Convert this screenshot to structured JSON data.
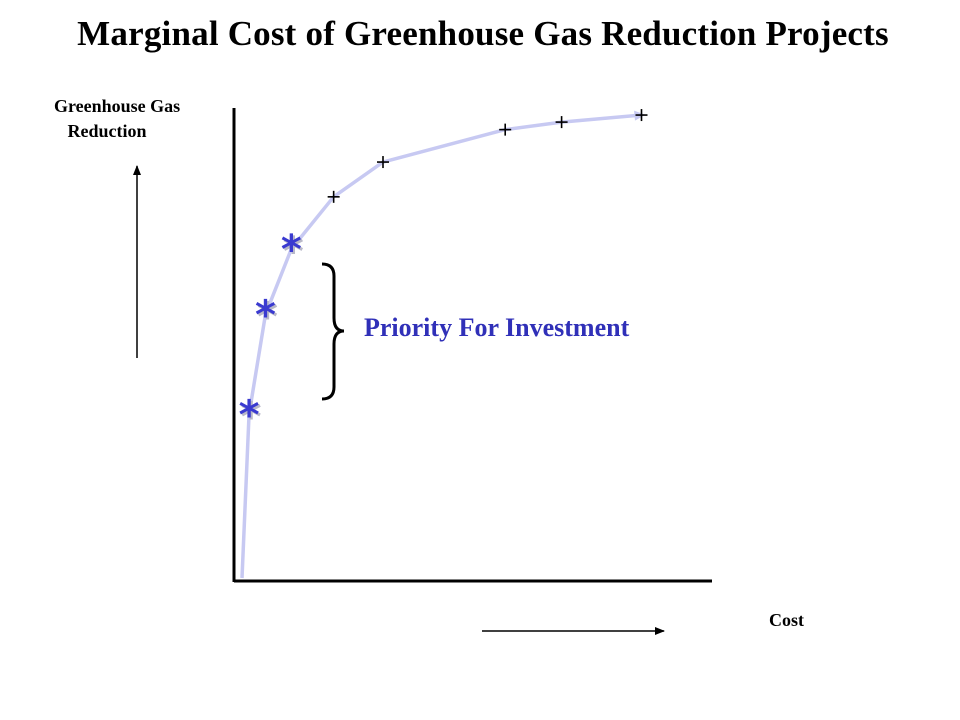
{
  "chart_data": {
    "type": "line",
    "title": "Marginal Cost of Greenhouse Gas Reduction Projects",
    "ylabel": "Greenhouse Gas\n   Reduction",
    "xlabel": "Cost",
    "annotation": "Priority For Investment",
    "grid": false,
    "curve": [
      {
        "cost": 0.0,
        "reduction": 0.0
      },
      {
        "cost": 1.5,
        "reduction": 34.8
      },
      {
        "cost": 5.0,
        "reduction": 56.1
      },
      {
        "cost": 10.5,
        "reduction": 70.0
      },
      {
        "cost": 19.5,
        "reduction": 81.1
      },
      {
        "cost": 30.0,
        "reduction": 88.5
      },
      {
        "cost": 56.0,
        "reduction": 95.4
      },
      {
        "cost": 68.0,
        "reduction": 97.0
      },
      {
        "cost": 85.0,
        "reduction": 98.5
      }
    ],
    "priority_projects": [
      {
        "cost": 1.5,
        "reduction": 34.8
      },
      {
        "cost": 5.0,
        "reduction": 56.1
      },
      {
        "cost": 10.5,
        "reduction": 70.0
      }
    ],
    "other_projects": [
      {
        "cost": 19.5,
        "reduction": 81.1
      },
      {
        "cost": 30.0,
        "reduction": 88.5
      },
      {
        "cost": 56.0,
        "reduction": 95.4
      },
      {
        "cost": 68.0,
        "reduction": 97.0
      },
      {
        "cost": 85.0,
        "reduction": 98.5
      }
    ],
    "colors": {
      "curve": "#c7c9f2",
      "priority_marker": "#3a3ad0",
      "other_marker": "#000000",
      "annotation": "#3030b8",
      "axes": "#000000"
    },
    "marker_icons": {
      "priority": "asterisk-icon",
      "other": "plus-icon"
    }
  }
}
